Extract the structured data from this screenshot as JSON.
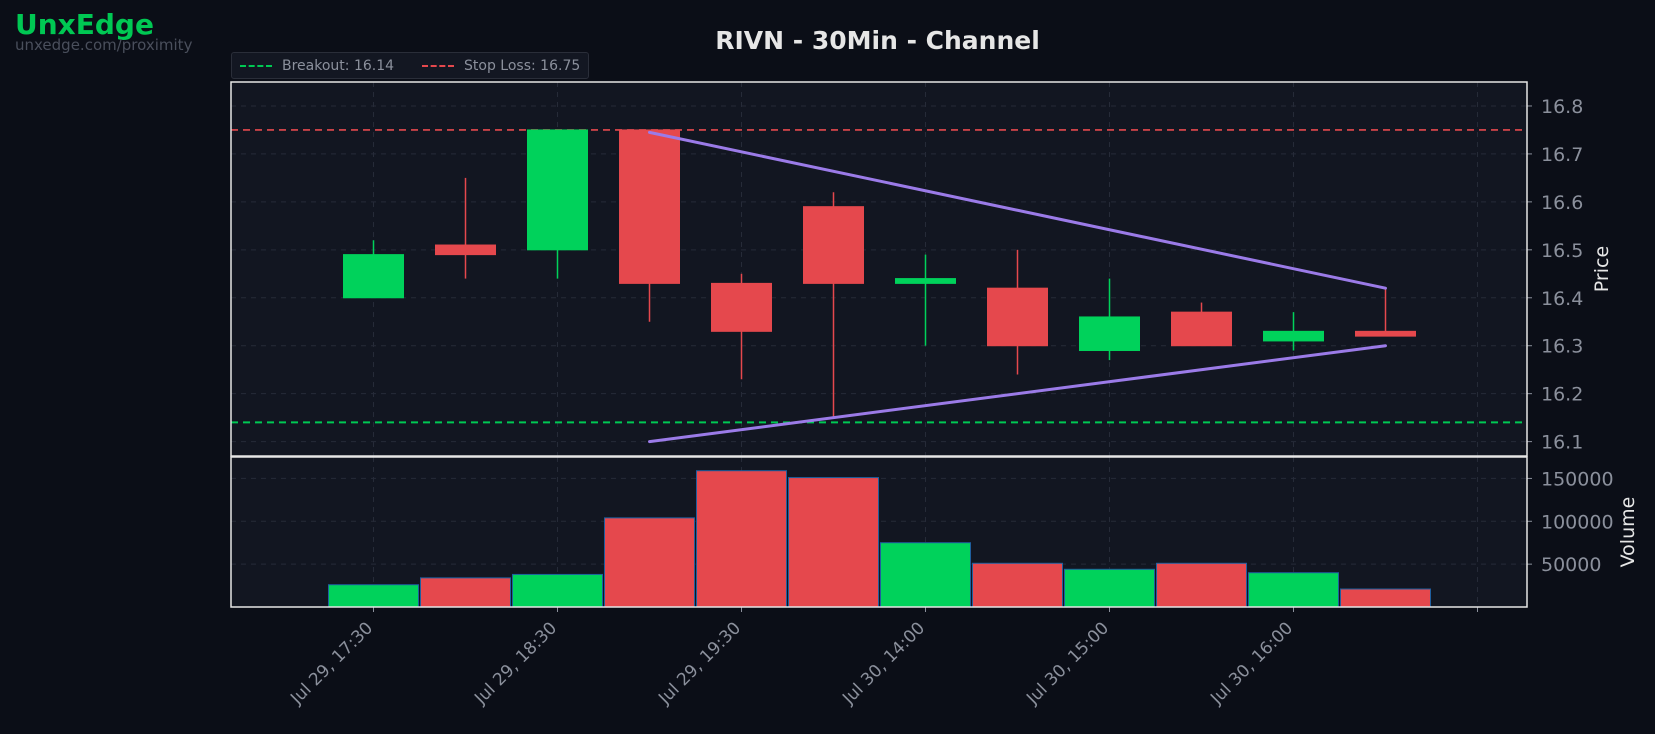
{
  "brand": {
    "name": "UnxEdge",
    "url": "unxedge.com/proximity"
  },
  "legend": [
    {
      "label": "Breakout: 16.14",
      "color": "#00c853"
    },
    {
      "label": "Stop Loss: 16.75",
      "color": "#e5484d"
    }
  ],
  "colors": {
    "up": "#00d25b",
    "down": "#e5484d",
    "pattern": "#9b7be8",
    "breakout": "#00c853",
    "stop": "#e5484d"
  },
  "chart_data": {
    "type": "candlestick",
    "title": "RIVN - 30Min - Channel",
    "ylabel": "Price",
    "volume_label": "Volume",
    "ylim": [
      16.07,
      16.85
    ],
    "volume_ylim": [
      0,
      175000
    ],
    "yticks": [
      "16.1",
      "16.2",
      "16.3",
      "16.4",
      "16.5",
      "16.6",
      "16.7",
      "16.8"
    ],
    "volume_ticks": [
      "50000",
      "100000",
      "150000"
    ],
    "xtick_labels": [
      "Jul 29, 17:30",
      "Jul 29, 18:30",
      "Jul 29, 19:30",
      "Jul 30, 14:00",
      "Jul 30, 15:00",
      "Jul 30, 16:00"
    ],
    "candles": [
      {
        "open": 16.4,
        "high": 16.52,
        "low": 16.4,
        "close": 16.49,
        "volume": 26000
      },
      {
        "open": 16.51,
        "high": 16.65,
        "low": 16.44,
        "close": 16.49,
        "volume": 34000
      },
      {
        "open": 16.5,
        "high": 16.75,
        "low": 16.44,
        "close": 16.75,
        "volume": 38000
      },
      {
        "open": 16.75,
        "high": 16.75,
        "low": 16.35,
        "close": 16.43,
        "volume": 104000
      },
      {
        "open": 16.43,
        "high": 16.45,
        "low": 16.23,
        "close": 16.33,
        "volume": 159000
      },
      {
        "open": 16.59,
        "high": 16.62,
        "low": 16.15,
        "close": 16.43,
        "volume": 151000
      },
      {
        "open": 16.43,
        "high": 16.49,
        "low": 16.3,
        "close": 16.44,
        "volume": 75000
      },
      {
        "open": 16.42,
        "high": 16.5,
        "low": 16.24,
        "close": 16.3,
        "volume": 51000
      },
      {
        "open": 16.29,
        "high": 16.44,
        "low": 16.27,
        "close": 16.36,
        "volume": 44000
      },
      {
        "open": 16.37,
        "high": 16.39,
        "low": 16.3,
        "close": 16.3,
        "volume": 51000
      },
      {
        "open": 16.31,
        "high": 16.37,
        "low": 16.29,
        "close": 16.33,
        "volume": 40000
      },
      {
        "open": 16.33,
        "high": 16.42,
        "low": 16.32,
        "close": 16.32,
        "volume": 21000
      }
    ],
    "breakout": 16.14,
    "stop_loss": 16.75,
    "channel_upper": {
      "start_index": 3,
      "start": 16.745,
      "end_index": 11,
      "end": 16.42
    },
    "channel_lower": {
      "start_index": 3,
      "start": 16.1,
      "end_index": 11,
      "end": 16.3
    }
  }
}
